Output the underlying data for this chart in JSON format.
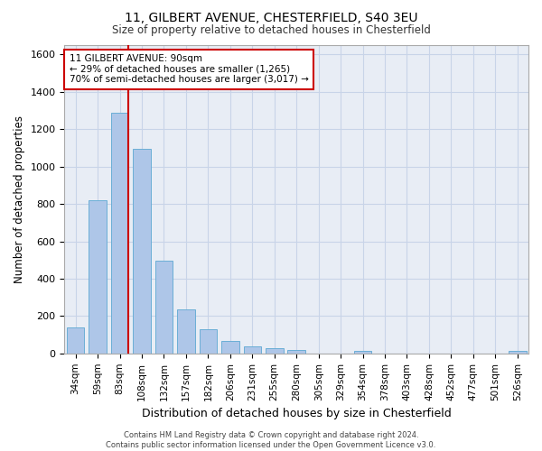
{
  "title_line1": "11, GILBERT AVENUE, CHESTERFIELD, S40 3EU",
  "title_line2": "Size of property relative to detached houses in Chesterfield",
  "xlabel": "Distribution of detached houses by size in Chesterfield",
  "ylabel": "Number of detached properties",
  "bar_labels": [
    "34sqm",
    "59sqm",
    "83sqm",
    "108sqm",
    "132sqm",
    "157sqm",
    "182sqm",
    "206sqm",
    "231sqm",
    "255sqm",
    "280sqm",
    "305sqm",
    "329sqm",
    "354sqm",
    "378sqm",
    "403sqm",
    "428sqm",
    "452sqm",
    "477sqm",
    "501sqm",
    "526sqm"
  ],
  "bar_values": [
    140,
    820,
    1290,
    1095,
    495,
    238,
    128,
    65,
    38,
    28,
    18,
    0,
    0,
    15,
    0,
    0,
    0,
    0,
    0,
    0,
    15
  ],
  "bar_color": "#aec6e8",
  "bar_edge_color": "#6baed6",
  "vline_x_index": 2,
  "vline_color": "#cc0000",
  "annotation_text": "11 GILBERT AVENUE: 90sqm\n← 29% of detached houses are smaller (1,265)\n70% of semi-detached houses are larger (3,017) →",
  "annotation_box_color": "#cc0000",
  "ylim": [
    0,
    1650
  ],
  "yticks": [
    0,
    200,
    400,
    600,
    800,
    1000,
    1200,
    1400,
    1600
  ],
  "grid_color": "#c8d4e8",
  "background_color": "#e8edf5",
  "footer_text": "Contains HM Land Registry data © Crown copyright and database right 2024.\nContains public sector information licensed under the Open Government Licence v3.0.",
  "figsize": [
    6.0,
    5.0
  ],
  "dpi": 100
}
